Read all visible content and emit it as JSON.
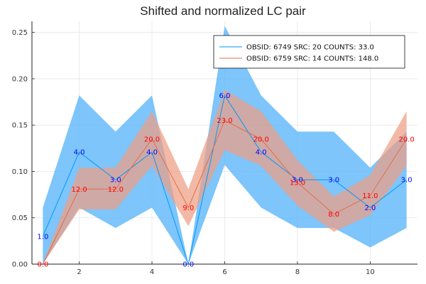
{
  "chart_data": {
    "type": "line",
    "title": "Shifted and normalized LC pair",
    "xlabel": "",
    "ylabel": "",
    "xlim": [
      0.7,
      11.3
    ],
    "ylim": [
      0,
      0.262
    ],
    "xticks": [
      2,
      4,
      6,
      8,
      10
    ],
    "xtick_labels": [
      "2",
      "4",
      "6",
      "8",
      "10"
    ],
    "yticks": [
      0,
      0.05,
      0.1,
      0.15,
      0.2,
      0.25
    ],
    "ytick_labels": [
      "0.00",
      "0.05",
      "0.10",
      "0.15",
      "0.20",
      "0.25"
    ],
    "grid": true,
    "legend_position": "top-right",
    "series": [
      {
        "name": "OBSID: 6749 SRC: 20 COUNTS: 33.0",
        "color": "#009AFA",
        "band_color": "#58B5FA",
        "x": [
          1,
          2,
          3,
          4,
          5,
          6,
          7,
          8,
          9,
          10,
          11
        ],
        "y": [
          0.03,
          0.121,
          0.091,
          0.121,
          0.0,
          0.182,
          0.121,
          0.091,
          0.091,
          0.061,
          0.091
        ],
        "lower": [
          0.0,
          0.061,
          0.039,
          0.061,
          0.0,
          0.107,
          0.061,
          0.039,
          0.039,
          0.018,
          0.039
        ],
        "upper": [
          0.061,
          0.182,
          0.143,
          0.182,
          0.0,
          0.257,
          0.182,
          0.143,
          0.143,
          0.104,
          0.143
        ],
        "point_labels": [
          "1.0",
          "4.0",
          "3.0",
          "4.0",
          "0.0",
          "6.0",
          "4.0",
          "3.0",
          "3.0",
          "2.0",
          "3.0"
        ],
        "label_color": "#0000FF"
      },
      {
        "name": "OBSID: 6759 SRC: 14 COUNTS: 148.0",
        "color": "#E26F46",
        "band_color": "#EE9E85",
        "x": [
          1,
          2,
          3,
          4,
          5,
          6,
          7,
          8,
          9,
          10,
          11
        ],
        "y": [
          0.0,
          0.081,
          0.081,
          0.135,
          0.061,
          0.155,
          0.135,
          0.088,
          0.054,
          0.074,
          0.135
        ],
        "lower": [
          0.0,
          0.059,
          0.059,
          0.106,
          0.041,
          0.123,
          0.106,
          0.063,
          0.035,
          0.053,
          0.106
        ],
        "upper": [
          0.0,
          0.104,
          0.104,
          0.165,
          0.081,
          0.188,
          0.165,
          0.112,
          0.073,
          0.096,
          0.165
        ],
        "point_labels": [
          "0.0",
          "12.0",
          "12.0",
          "20.0",
          "9.0",
          "23.0",
          "20.0",
          "13.0",
          "8.0",
          "11.0",
          "20.0"
        ],
        "label_color": "#FF0000"
      }
    ]
  }
}
